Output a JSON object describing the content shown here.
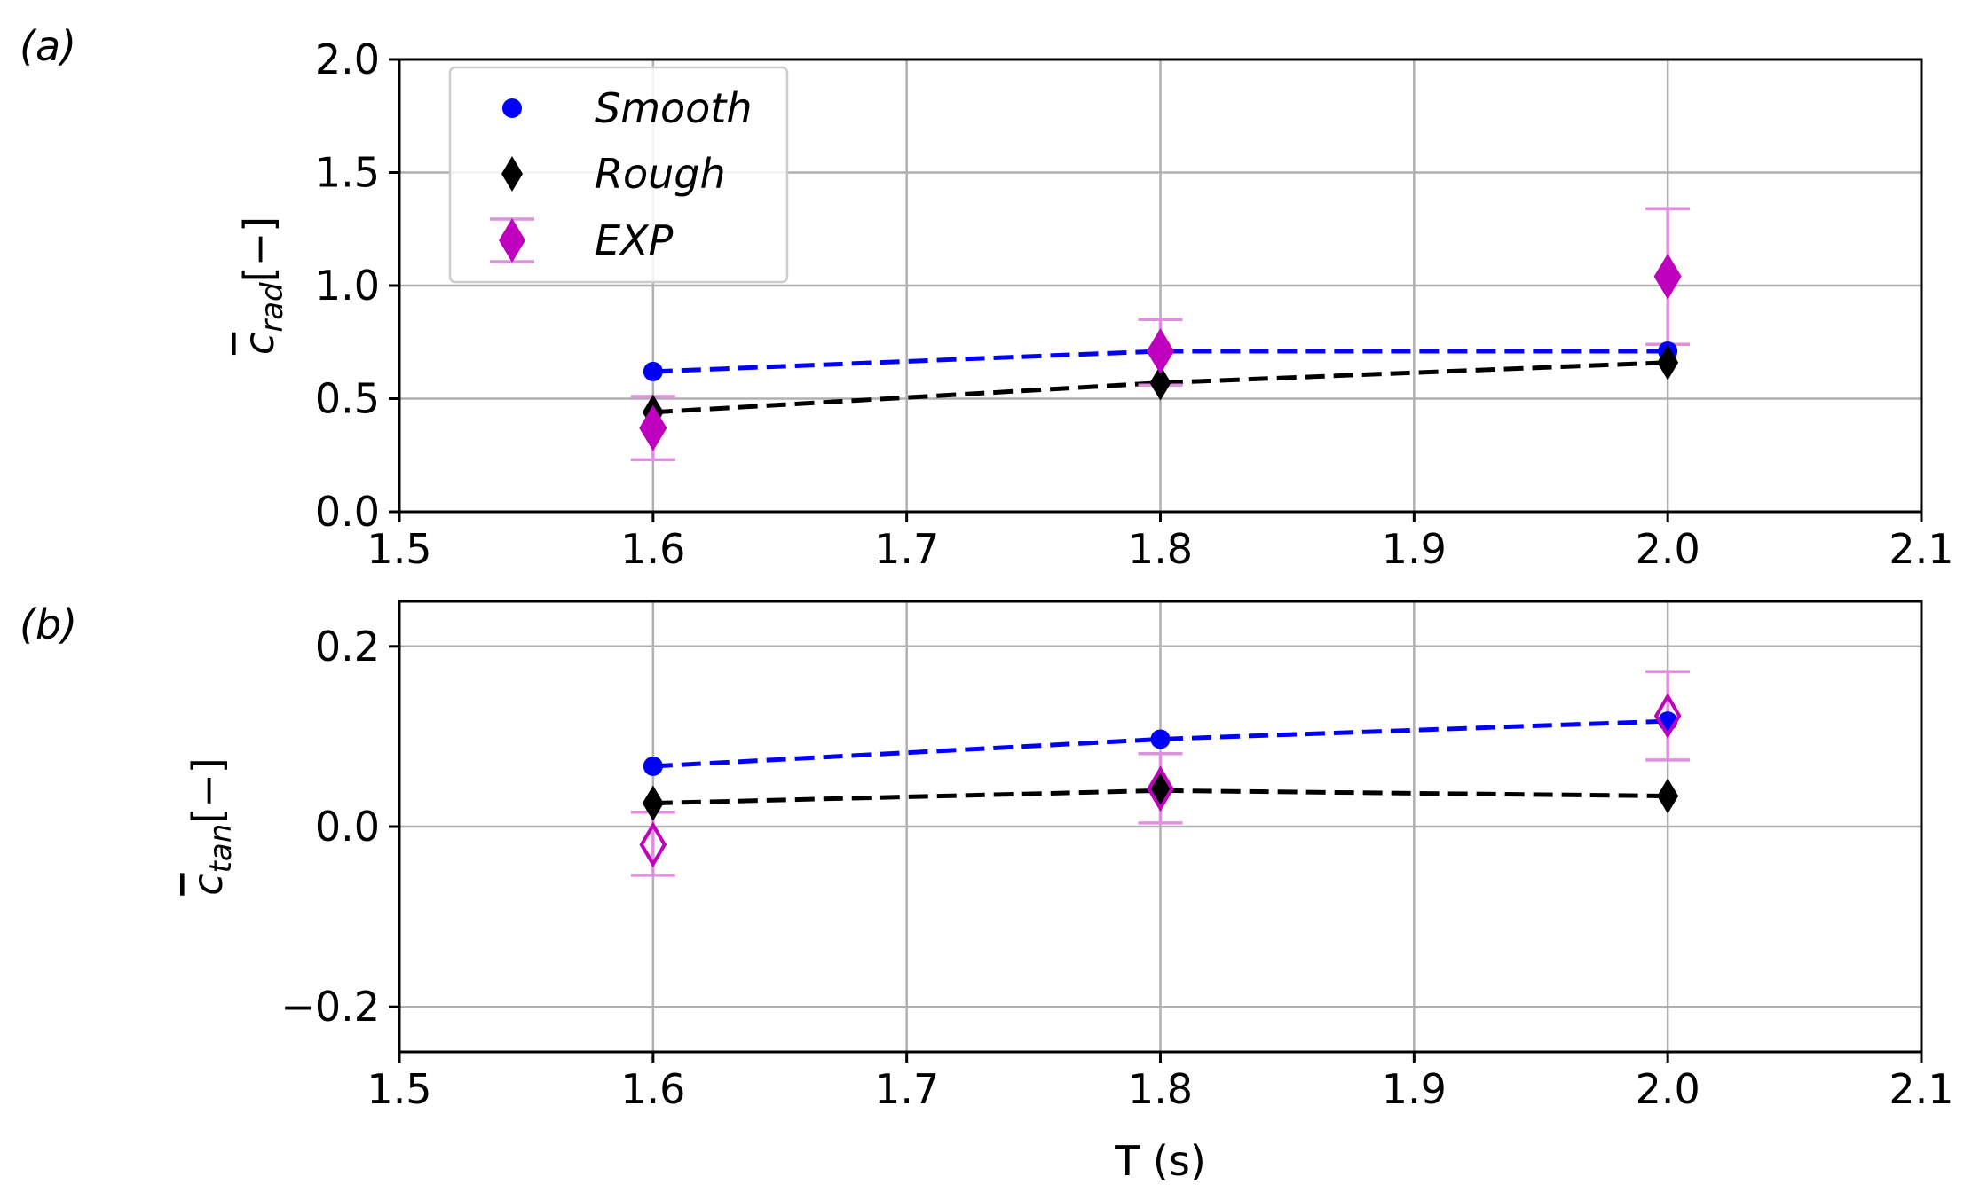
{
  "colors": {
    "smooth": "#0000ff",
    "rough": "#000000",
    "exp": "#bf00bf",
    "errorbar": "#e08ee0",
    "grid": "#b0b0b0"
  },
  "legend": {
    "entries": [
      {
        "key": "smooth",
        "label": "Smooth",
        "marker": "circle"
      },
      {
        "key": "rough",
        "label": "Rough",
        "marker": "diamond"
      },
      {
        "key": "exp",
        "label": "EXP",
        "marker": "diamond-errorbar"
      }
    ]
  },
  "chart_data": [
    {
      "type": "line",
      "panel_label": "(a)",
      "ylabel_symbol": "c",
      "ylabel_subscript": "rad",
      "ylabel_suffix": "[−]",
      "xlabel": "",
      "xlim": [
        1.5,
        2.1
      ],
      "ylim": [
        0.0,
        2.0
      ],
      "xticks": [
        1.5,
        1.6,
        1.7,
        1.8,
        1.9,
        2.0,
        2.1
      ],
      "xtick_labels": [
        "1.5",
        "1.6",
        "1.7",
        "1.8",
        "1.9",
        "2.0",
        "2.1"
      ],
      "yticks": [
        0.0,
        0.5,
        1.0,
        1.5,
        2.0
      ],
      "ytick_labels": [
        "0.0",
        "0.5",
        "1.0",
        "1.5",
        "2.0"
      ],
      "grid": true,
      "series": [
        {
          "name": "Smooth",
          "x": [
            1.6,
            1.8,
            2.0
          ],
          "y": [
            0.62,
            0.71,
            0.71
          ]
        },
        {
          "name": "Rough",
          "x": [
            1.6,
            1.8,
            2.0
          ],
          "y": [
            0.44,
            0.57,
            0.66
          ]
        },
        {
          "name": "EXP",
          "x": [
            1.6,
            1.8,
            2.0
          ],
          "y": [
            0.37,
            0.71,
            1.04
          ],
          "err_low": [
            0.23,
            0.56,
            0.74
          ],
          "err_high": [
            0.51,
            0.85,
            1.34
          ],
          "hollow": [
            false,
            false,
            false
          ]
        }
      ]
    },
    {
      "type": "line",
      "panel_label": "(b)",
      "ylabel_symbol": "c",
      "ylabel_subscript": "tan",
      "ylabel_suffix": "[−]",
      "xlabel": "T (s)",
      "xlim": [
        1.5,
        2.1
      ],
      "ylim": [
        -0.25,
        0.25
      ],
      "xticks": [
        1.5,
        1.6,
        1.7,
        1.8,
        1.9,
        2.0,
        2.1
      ],
      "xtick_labels": [
        "1.5",
        "1.6",
        "1.7",
        "1.8",
        "1.9",
        "2.0",
        "2.1"
      ],
      "yticks": [
        -0.2,
        0.0,
        0.2
      ],
      "ytick_labels": [
        "−0.2",
        "0.0",
        "0.2"
      ],
      "grid": true,
      "series": [
        {
          "name": "Smooth",
          "x": [
            1.6,
            1.8,
            2.0
          ],
          "y": [
            0.067,
            0.097,
            0.117
          ]
        },
        {
          "name": "Rough",
          "x": [
            1.6,
            1.8,
            2.0
          ],
          "y": [
            0.026,
            0.04,
            0.034
          ]
        },
        {
          "name": "EXP",
          "x": [
            1.6,
            1.8,
            2.0
          ],
          "y": [
            -0.02,
            0.042,
            0.123
          ],
          "err_low": [
            -0.054,
            0.004,
            0.074
          ],
          "err_high": [
            0.016,
            0.081,
            0.172
          ],
          "hollow": [
            true,
            true,
            true
          ]
        }
      ]
    }
  ]
}
